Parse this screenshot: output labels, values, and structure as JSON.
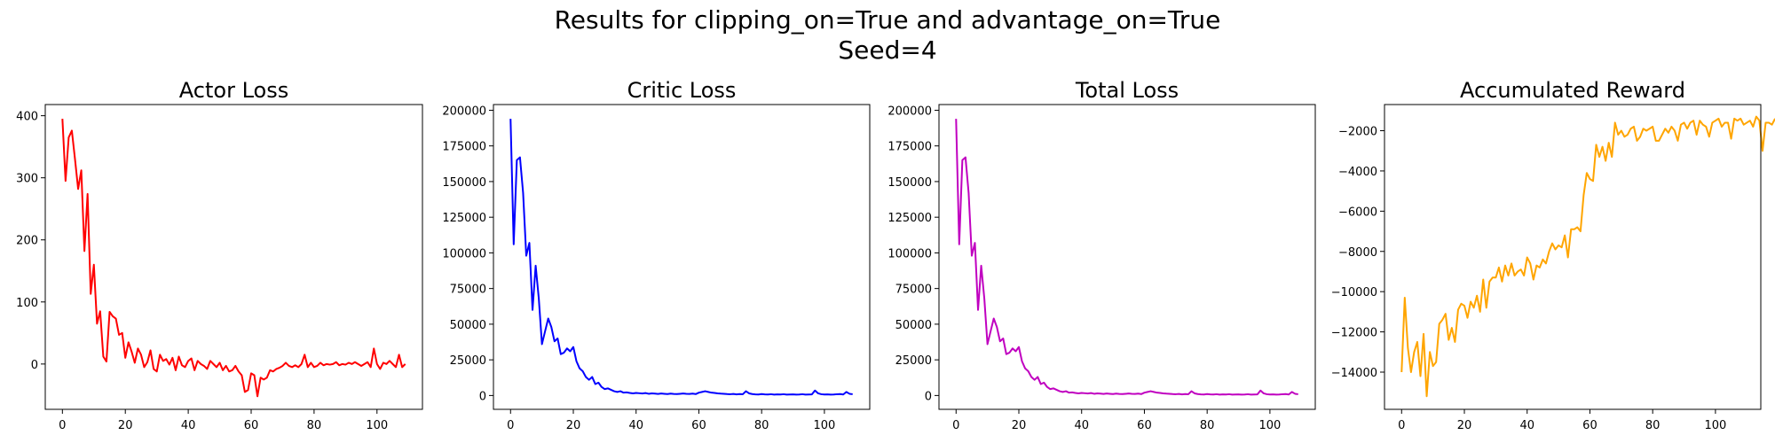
{
  "figure": {
    "suptitle_line1": "Results for clipping_on=True and advantage_on=True",
    "suptitle_line2": "Seed=4"
  },
  "chart_data": [
    {
      "type": "line",
      "title": "Actor Loss",
      "xlabel": "",
      "ylabel": "",
      "color": "#ff0000",
      "xlim": [
        -5.45,
        114.45
      ],
      "ylim": [
        -73,
        418
      ],
      "xticks": [
        0,
        20,
        40,
        60,
        80,
        100
      ],
      "xtick_labels": [
        "0",
        "20",
        "40",
        "60",
        "80",
        "100"
      ],
      "yticks": [
        0,
        100,
        200,
        300,
        400
      ],
      "ytick_labels": [
        "0",
        "100",
        "200",
        "300",
        "400"
      ],
      "grid": false,
      "y": [
        395,
        295,
        365,
        376,
        330,
        282,
        312,
        182,
        274,
        113,
        160,
        65,
        85,
        12,
        4,
        84,
        77,
        73,
        47,
        50,
        10,
        35,
        20,
        2,
        25,
        15,
        -5,
        3,
        22,
        -8,
        -12,
        15,
        5,
        8,
        -1,
        10,
        -10,
        12,
        -2,
        -5,
        5,
        9,
        -10,
        5,
        0,
        -3,
        -8,
        5,
        0,
        -5,
        2,
        -10,
        -3,
        -12,
        -10,
        -3,
        -12,
        -18,
        -45,
        -42,
        -15,
        -18,
        -52,
        -22,
        -25,
        -22,
        -10,
        -12,
        -8,
        -6,
        -3,
        2,
        -3,
        -5,
        -2,
        -5,
        0,
        15,
        -5,
        2,
        -5,
        -3,
        2,
        -2,
        0,
        -1,
        0,
        3,
        -2,
        0,
        -1,
        2,
        0,
        3,
        0,
        -3,
        0,
        3,
        -5,
        25,
        0,
        -8,
        2,
        0,
        5,
        0,
        -5,
        15,
        -5,
        0
      ]
    },
    {
      "type": "line",
      "title": "Critic Loss",
      "xlabel": "",
      "ylabel": "",
      "color": "#0000ff",
      "xlim": [
        -5.45,
        114.45
      ],
      "ylim": [
        -9700,
        204000
      ],
      "xticks": [
        0,
        20,
        40,
        60,
        80,
        100
      ],
      "xtick_labels": [
        "0",
        "20",
        "40",
        "60",
        "80",
        "100"
      ],
      "yticks": [
        0,
        25000,
        50000,
        75000,
        100000,
        125000,
        150000,
        175000,
        200000
      ],
      "ytick_labels": [
        "0",
        "25000",
        "50000",
        "75000",
        "100000",
        "125000",
        "150000",
        "175000",
        "200000"
      ],
      "grid": false,
      "y": [
        194000,
        106000,
        165000,
        167000,
        142000,
        98000,
        107000,
        60000,
        91000,
        68000,
        36000,
        45000,
        54000,
        48000,
        38000,
        40000,
        29000,
        30000,
        33000,
        31000,
        34000,
        24000,
        19000,
        17000,
        13000,
        11000,
        13000,
        8000,
        9000,
        6000,
        4500,
        5000,
        4000,
        3000,
        2500,
        3000,
        2000,
        2200,
        1800,
        1500,
        1800,
        1600,
        1400,
        1700,
        1200,
        1500,
        1300,
        1100,
        1400,
        1200,
        1000,
        1300,
        1100,
        1000,
        1200,
        1400,
        1200,
        1100,
        1300,
        1000,
        2000,
        2500,
        3000,
        2500,
        2000,
        1800,
        1500,
        1300,
        1200,
        1000,
        900,
        1100,
        800,
        1000,
        900,
        3000,
        1500,
        1000,
        800,
        700,
        1000,
        800,
        700,
        900,
        600,
        800,
        700,
        900,
        600,
        700,
        800,
        600,
        700,
        900,
        600,
        700,
        800,
        3500,
        1500,
        900,
        700,
        800,
        600,
        700,
        900,
        1000,
        700,
        2500,
        1200,
        900
      ]
    },
    {
      "type": "line",
      "title": "Total Loss",
      "xlabel": "",
      "ylabel": "",
      "color": "#c000c0",
      "xlim": [
        -5.45,
        114.45
      ],
      "ylim": [
        -9700,
        204000
      ],
      "xticks": [
        0,
        20,
        40,
        60,
        80,
        100
      ],
      "xtick_labels": [
        "0",
        "20",
        "40",
        "60",
        "80",
        "100"
      ],
      "yticks": [
        0,
        25000,
        50000,
        75000,
        100000,
        125000,
        150000,
        175000,
        200000
      ],
      "ytick_labels": [
        "0",
        "25000",
        "50000",
        "75000",
        "100000",
        "125000",
        "150000",
        "175000",
        "200000"
      ],
      "grid": false,
      "y": [
        194000,
        106000,
        165000,
        167000,
        142000,
        98000,
        107000,
        60000,
        91000,
        68000,
        36000,
        45000,
        54000,
        48000,
        38000,
        40000,
        29000,
        30000,
        33000,
        31000,
        34000,
        24000,
        19000,
        17000,
        13000,
        11000,
        13000,
        8000,
        9000,
        6000,
        4500,
        5000,
        4000,
        3000,
        2500,
        3000,
        2000,
        2200,
        1800,
        1500,
        1800,
        1600,
        1400,
        1700,
        1200,
        1500,
        1300,
        1100,
        1400,
        1200,
        1000,
        1300,
        1100,
        1000,
        1200,
        1400,
        1200,
        1100,
        1300,
        1000,
        2000,
        2500,
        3000,
        2500,
        2000,
        1800,
        1500,
        1300,
        1200,
        1000,
        900,
        1100,
        800,
        1000,
        900,
        3000,
        1500,
        1000,
        800,
        700,
        1000,
        800,
        700,
        900,
        600,
        800,
        700,
        900,
        600,
        700,
        800,
        600,
        700,
        900,
        600,
        700,
        800,
        3500,
        1500,
        900,
        700,
        800,
        600,
        700,
        900,
        1000,
        700,
        2500,
        1200,
        900
      ]
    },
    {
      "type": "line",
      "title": "Accumulated Reward",
      "xlabel": "",
      "ylabel": "",
      "color": "#ffa500",
      "xlim": [
        -5.45,
        114.45
      ],
      "ylim": [
        -15850,
        -700
      ],
      "xticks": [
        0,
        20,
        40,
        60,
        80,
        100
      ],
      "xtick_labels": [
        "0",
        "20",
        "40",
        "60",
        "80",
        "100"
      ],
      "yticks": [
        -14000,
        -12000,
        -10000,
        -8000,
        -6000,
        -4000,
        -2000
      ],
      "ytick_labels": [
        "−14000",
        "−12000",
        "−10000",
        "−8000",
        "−6000",
        "−4000",
        "−2000"
      ],
      "grid": false,
      "y": [
        -14000,
        -10300,
        -12800,
        -14000,
        -13000,
        -12500,
        -14200,
        -12100,
        -15200,
        -13000,
        -13700,
        -13500,
        -11600,
        -11400,
        -11100,
        -12400,
        -11800,
        -12500,
        -10900,
        -10600,
        -10700,
        -11300,
        -10500,
        -10800,
        -10200,
        -11000,
        -9400,
        -10800,
        -9500,
        -9300,
        -9300,
        -8800,
        -9500,
        -8700,
        -9200,
        -8600,
        -9200,
        -9000,
        -8900,
        -9200,
        -8300,
        -8600,
        -9400,
        -8700,
        -8800,
        -8400,
        -8600,
        -8000,
        -7600,
        -7900,
        -7700,
        -7800,
        -7200,
        -8300,
        -6900,
        -6900,
        -6800,
        -7000,
        -5200,
        -4100,
        -4400,
        -4500,
        -2700,
        -3300,
        -2800,
        -3500,
        -2600,
        -3300,
        -1600,
        -2200,
        -2000,
        -2300,
        -2200,
        -1900,
        -1800,
        -2500,
        -2300,
        -1900,
        -2000,
        -1900,
        -1800,
        -2500,
        -2500,
        -2200,
        -1900,
        -2100,
        -1800,
        -2000,
        -2500,
        -1700,
        -1600,
        -1900,
        -1600,
        -1500,
        -2200,
        -1500,
        -1700,
        -1800,
        -2300,
        -1600,
        -1500,
        -1400,
        -1800,
        -1600,
        -1600,
        -2400,
        -1400,
        -1500,
        -1400,
        -1700,
        -1600,
        -1500,
        -1800,
        -1300,
        -1500,
        -3000,
        -1600,
        -1600,
        -1700,
        -1400
      ]
    }
  ]
}
